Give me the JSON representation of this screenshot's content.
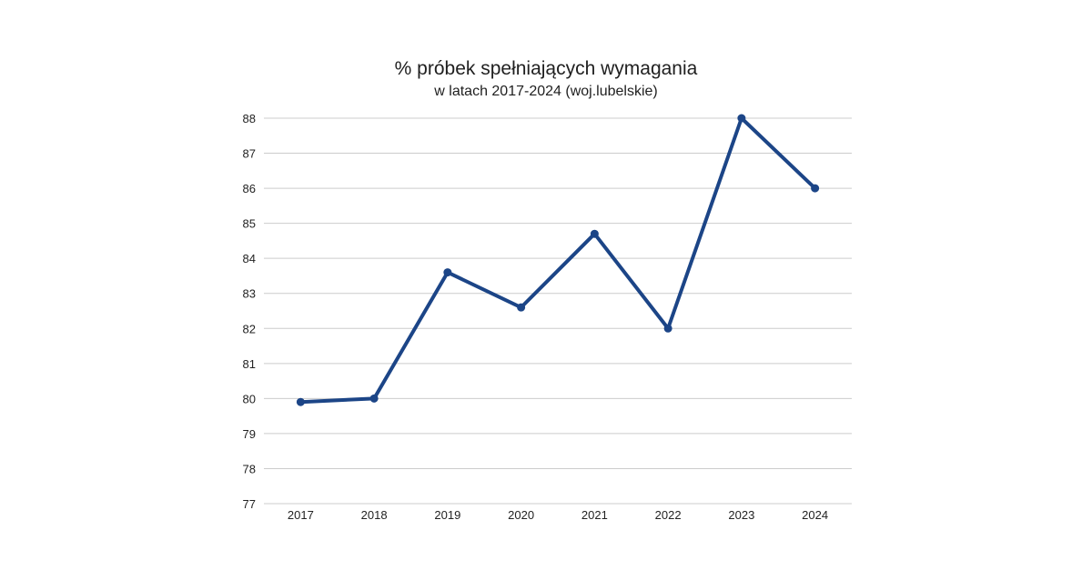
{
  "chart_data": {
    "type": "line",
    "title": "% próbek spełniających wymagania",
    "subtitle": "w latach 2017-2024 (woj.lubelskie)",
    "xlabel": "",
    "ylabel": "",
    "categories": [
      "2017",
      "2018",
      "2019",
      "2020",
      "2021",
      "2022",
      "2023",
      "2024"
    ],
    "series": [
      {
        "values": [
          79.9,
          80.0,
          83.6,
          82.6,
          84.7,
          82.0,
          88.0,
          86.0
        ]
      }
    ],
    "ylim": [
      77,
      88
    ],
    "yticks": [
      "77",
      "78",
      "79",
      "80",
      "81",
      "82",
      "83",
      "84",
      "85",
      "86",
      "87",
      "88"
    ],
    "grid": true,
    "legend": "none",
    "colors": {
      "line": "#1c4587",
      "grid": "#cccccc",
      "text": "#222222"
    }
  }
}
